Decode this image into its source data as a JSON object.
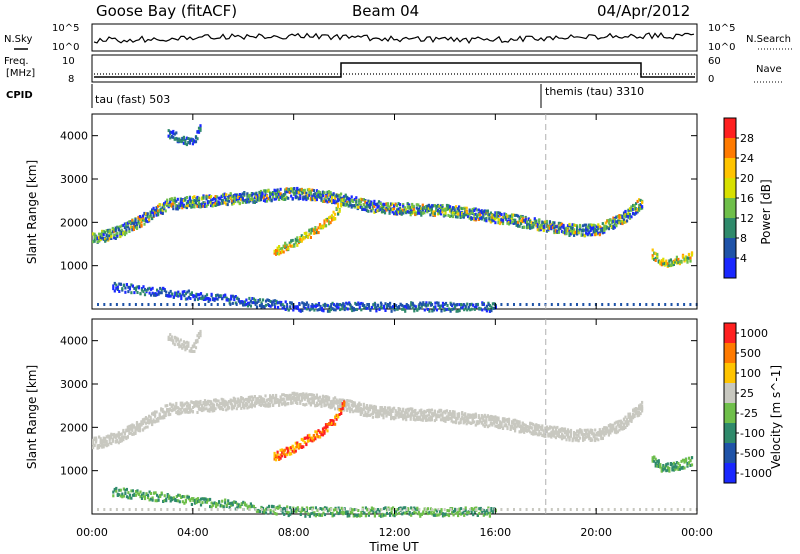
{
  "header": {
    "station": "Goose Bay (fitACF)",
    "beam": "Beam 04",
    "date": "04/Apr/2012"
  },
  "noise_panel": {
    "left_label": "N.Sky",
    "right_label": "N.Search",
    "tick_top": "10^5",
    "tick_bottom": "10^0"
  },
  "freq_panel": {
    "left_label_1": "Freq.",
    "left_label_2": "[MHz]",
    "left_tick_top": "10",
    "left_tick_bottom": "8",
    "right_label": "Nave",
    "right_tick_top": "60",
    "right_tick_bottom": "0"
  },
  "cpid_panel": {
    "label": "CPID",
    "mode_1": "tau (fast) 503",
    "mode_2": "themis (tau) 3310"
  },
  "chart_data": [
    {
      "type": "heatmap",
      "quantity": "Power",
      "ylabel": "Slant Range [km]",
      "xlabel": "Time UT",
      "x_ticks": [
        "00:00",
        "04:00",
        "08:00",
        "12:00",
        "16:00",
        "20:00",
        "00:00"
      ],
      "y_ticks": [
        "1000",
        "2000",
        "3000",
        "4000"
      ],
      "ylim_km": [
        0,
        4500
      ],
      "xlim_hours": [
        0,
        24
      ],
      "colorbar": {
        "label": "Power [dB]",
        "ticks": [
          "4",
          "8",
          "12",
          "16",
          "20",
          "24",
          "28"
        ],
        "colors": [
          "#1a28ff",
          "#1f53a8",
          "#2f8a6b",
          "#6fbf4a",
          "#d8e000",
          "#ffc400",
          "#ff7a00",
          "#ff2020"
        ]
      },
      "echo_bands": [
        {
          "name": "main-band",
          "points": [
            [
              0.0,
              1650
            ],
            [
              1.0,
              1800
            ],
            [
              2.0,
              2100
            ],
            [
              3.0,
              2450
            ],
            [
              4.0,
              2500
            ],
            [
              5.0,
              2550
            ],
            [
              6.0,
              2600
            ],
            [
              7.0,
              2650
            ],
            [
              8.0,
              2700
            ],
            [
              9.0,
              2650
            ],
            [
              10.0,
              2550
            ],
            [
              11.0,
              2400
            ],
            [
              12.0,
              2350
            ],
            [
              14.0,
              2300
            ],
            [
              16.0,
              2150
            ],
            [
              18.0,
              1950
            ],
            [
              19.0,
              1850
            ],
            [
              20.0,
              1850
            ],
            [
              21.0,
              2100
            ],
            [
              21.5,
              2350
            ],
            [
              21.8,
              2500
            ]
          ]
        },
        {
          "name": "distant-echoes",
          "points": [
            [
              3.0,
              4100
            ],
            [
              3.5,
              3950
            ],
            [
              4.0,
              3850
            ],
            [
              4.3,
              4300
            ]
          ]
        },
        {
          "name": "evening-echoes",
          "points": [
            [
              7.2,
              1350
            ],
            [
              7.8,
              1500
            ],
            [
              8.4,
              1700
            ],
            [
              9.0,
              1900
            ],
            [
              9.6,
              2200
            ],
            [
              10.0,
              2600
            ]
          ]
        },
        {
          "name": "late-echoes",
          "points": [
            [
              22.2,
              1300
            ],
            [
              22.6,
              1100
            ],
            [
              23.2,
              1150
            ],
            [
              23.8,
              1250
            ]
          ]
        },
        {
          "name": "near-range",
          "points": [
            [
              0.8,
              550
            ],
            [
              1.2,
              520
            ],
            [
              8.0,
              80
            ],
            [
              16.0,
              80
            ]
          ]
        }
      ],
      "vertical_marker_hour": 18.0
    },
    {
      "type": "heatmap",
      "quantity": "Velocity",
      "ylabel": "Slant Range [km]",
      "xlabel": "Time UT",
      "x_ticks": [
        "00:00",
        "04:00",
        "08:00",
        "12:00",
        "16:00",
        "20:00",
        "00:00"
      ],
      "y_ticks": [
        "1000",
        "2000",
        "3000",
        "4000"
      ],
      "ylim_km": [
        0,
        4500
      ],
      "xlim_hours": [
        0,
        24
      ],
      "colorbar": {
        "label": "Velocity [m s^-1]",
        "ticks": [
          "1000",
          "500",
          "100",
          "25",
          "-25",
          "-100",
          "-500",
          "-1000"
        ],
        "colors": [
          "#1a28ff",
          "#1f53a8",
          "#2f8a6b",
          "#6fbf4a",
          "#c8c8c0",
          "#ffc400",
          "#ff7a00",
          "#ff2020"
        ]
      },
      "vertical_marker_hour": 18.0
    }
  ],
  "x_axis": {
    "label": "Time UT",
    "ticks": [
      "00:00",
      "04:00",
      "08:00",
      "12:00",
      "16:00",
      "20:00",
      "00:00"
    ]
  }
}
